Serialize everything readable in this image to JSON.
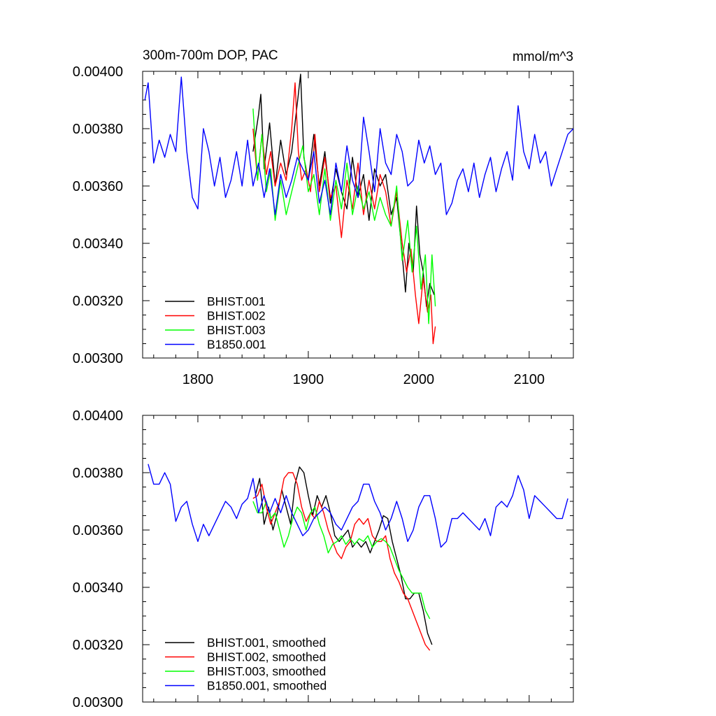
{
  "figure": {
    "title_left": "300m-700m DOP, PAC",
    "title_right": "mmol/m^3"
  },
  "chart_data": [
    {
      "type": "line",
      "title": "300m-700m DOP, PAC",
      "units": "mmol/m^3",
      "xlabel": "",
      "ylabel": "",
      "xlim": [
        1750,
        2140
      ],
      "ylim": [
        0.003,
        0.004
      ],
      "xticks": [
        1800,
        1900,
        2000,
        2100
      ],
      "xtick_labels": [
        "1800",
        "1900",
        "2000",
        "2100"
      ],
      "yticks": [
        0.003,
        0.0032,
        0.0034,
        0.0036,
        0.0038,
        0.004
      ],
      "ytick_labels": [
        "0.00300",
        "0.00320",
        "0.00340",
        "0.00360",
        "0.00380",
        "0.00400"
      ],
      "legend_position": "bottom-left",
      "series": [
        {
          "name": "BHIST.001",
          "color": "#000000",
          "x": [
            1850,
            1855,
            1857,
            1860,
            1865,
            1870,
            1875,
            1880,
            1885,
            1888,
            1891,
            1893,
            1896,
            1900,
            1905,
            1910,
            1915,
            1920,
            1925,
            1930,
            1935,
            1940,
            1945,
            1950,
            1955,
            1960,
            1965,
            1970,
            1975,
            1980,
            1985,
            1988,
            1991,
            1995,
            1998,
            2001,
            2004,
            2007,
            2010,
            2014
          ],
          "y": [
            0.00372,
            0.00385,
            0.00392,
            0.00366,
            0.00382,
            0.0036,
            0.00376,
            0.00364,
            0.00372,
            0.00382,
            0.00392,
            0.00399,
            0.0037,
            0.00362,
            0.00378,
            0.0036,
            0.00372,
            0.00354,
            0.00366,
            0.00358,
            0.00352,
            0.0037,
            0.00356,
            0.00364,
            0.00348,
            0.00366,
            0.0036,
            0.00364,
            0.0035,
            0.00356,
            0.00336,
            0.00323,
            0.0034,
            0.0033,
            0.00353,
            0.00336,
            0.0033,
            0.00318,
            0.00326,
            0.00322
          ]
        },
        {
          "name": "BHIST.002",
          "color": "#ff0000",
          "x": [
            1850,
            1854,
            1858,
            1862,
            1866,
            1870,
            1875,
            1880,
            1885,
            1888,
            1891,
            1894,
            1898,
            1902,
            1906,
            1910,
            1915,
            1920,
            1925,
            1930,
            1935,
            1940,
            1945,
            1950,
            1955,
            1960,
            1965,
            1970,
            1975,
            1980,
            1985,
            1989,
            1993,
            1997,
            2000,
            2004,
            2008,
            2011,
            2013,
            2015
          ],
          "y": [
            0.0038,
            0.00362,
            0.00378,
            0.00364,
            0.00372,
            0.0036,
            0.00368,
            0.00362,
            0.0038,
            0.00396,
            0.00372,
            0.00362,
            0.00366,
            0.00358,
            0.00378,
            0.00358,
            0.0037,
            0.00356,
            0.0036,
            0.00342,
            0.00362,
            0.00352,
            0.00368,
            0.0035,
            0.00362,
            0.00352,
            0.00364,
            0.00358,
            0.00346,
            0.00358,
            0.0034,
            0.0033,
            0.00338,
            0.00322,
            0.00312,
            0.00328,
            0.00316,
            0.00322,
            0.00305,
            0.00311
          ]
        },
        {
          "name": "BHIST.003",
          "color": "#00ff00",
          "x": [
            1850,
            1854,
            1858,
            1862,
            1866,
            1870,
            1875,
            1880,
            1885,
            1890,
            1895,
            1900,
            1905,
            1910,
            1915,
            1920,
            1925,
            1930,
            1935,
            1940,
            1945,
            1950,
            1955,
            1960,
            1965,
            1970,
            1975,
            1980,
            1985,
            1990,
            1994,
            1998,
            2002,
            2006,
            2009,
            2012,
            2015
          ],
          "y": [
            0.00387,
            0.00362,
            0.00378,
            0.00358,
            0.00366,
            0.00348,
            0.00362,
            0.0035,
            0.00358,
            0.00366,
            0.00374,
            0.00358,
            0.00364,
            0.0035,
            0.00366,
            0.00348,
            0.00362,
            0.00352,
            0.00368,
            0.0035,
            0.0036,
            0.00352,
            0.00358,
            0.00348,
            0.00356,
            0.0035,
            0.00346,
            0.0036,
            0.00334,
            0.00348,
            0.0033,
            0.00346,
            0.00324,
            0.00336,
            0.00312,
            0.00336,
            0.00318
          ]
        },
        {
          "name": "B1850.001",
          "color": "#0000ff",
          "x": [
            1752,
            1755,
            1760,
            1765,
            1770,
            1775,
            1780,
            1785,
            1790,
            1795,
            1800,
            1805,
            1810,
            1815,
            1820,
            1825,
            1830,
            1835,
            1840,
            1845,
            1850,
            1855,
            1860,
            1865,
            1870,
            1875,
            1880,
            1885,
            1890,
            1895,
            1900,
            1905,
            1910,
            1915,
            1920,
            1925,
            1930,
            1935,
            1940,
            1945,
            1950,
            1955,
            1960,
            1965,
            1970,
            1975,
            1980,
            1985,
            1990,
            1995,
            2000,
            2005,
            2010,
            2015,
            2020,
            2025,
            2030,
            2035,
            2040,
            2045,
            2050,
            2055,
            2060,
            2065,
            2070,
            2075,
            2080,
            2085,
            2090,
            2095,
            2100,
            2105,
            2110,
            2115,
            2120,
            2125,
            2130,
            2135,
            2140
          ],
          "y": [
            0.0039,
            0.00396,
            0.00368,
            0.00376,
            0.0037,
            0.00378,
            0.00372,
            0.00398,
            0.00372,
            0.00356,
            0.00352,
            0.0038,
            0.00372,
            0.0036,
            0.0037,
            0.00356,
            0.00362,
            0.00372,
            0.0036,
            0.00376,
            0.0036,
            0.00368,
            0.00356,
            0.00366,
            0.0035,
            0.00364,
            0.00356,
            0.00362,
            0.0037,
            0.00366,
            0.00362,
            0.00372,
            0.00354,
            0.00362,
            0.0035,
            0.00368,
            0.00358,
            0.00374,
            0.00362,
            0.00356,
            0.00384,
            0.00372,
            0.00358,
            0.0038,
            0.00368,
            0.00364,
            0.00378,
            0.00372,
            0.0036,
            0.00362,
            0.00376,
            0.00368,
            0.00374,
            0.00364,
            0.00368,
            0.0035,
            0.00354,
            0.00362,
            0.00366,
            0.00358,
            0.00368,
            0.00356,
            0.00364,
            0.0037,
            0.00358,
            0.00366,
            0.00372,
            0.00362,
            0.00388,
            0.00372,
            0.00366,
            0.00378,
            0.00368,
            0.00372,
            0.0036,
            0.00366,
            0.00372,
            0.00378,
            0.0038
          ]
        }
      ]
    },
    {
      "type": "line",
      "title": "",
      "xlabel": "",
      "ylabel": "",
      "xlim": [
        1750,
        2140
      ],
      "ylim": [
        0.003,
        0.004
      ],
      "xticks": [
        1800,
        1900,
        2000,
        2100
      ],
      "xtick_labels": [],
      "yticks": [
        0.003,
        0.0032,
        0.0034,
        0.0036,
        0.0038,
        0.004
      ],
      "ytick_labels": [
        "0.00300",
        "0.00320",
        "0.00340",
        "0.00360",
        "0.00380",
        "0.00400"
      ],
      "legend_position": "bottom-left",
      "series": [
        {
          "name": "BHIST.001, smoothed",
          "color": "#000000",
          "x": [
            1852,
            1856,
            1860,
            1864,
            1868,
            1872,
            1876,
            1880,
            1884,
            1888,
            1892,
            1896,
            1900,
            1904,
            1908,
            1912,
            1916,
            1920,
            1924,
            1928,
            1932,
            1936,
            1940,
            1944,
            1948,
            1952,
            1956,
            1960,
            1964,
            1968,
            1972,
            1976,
            1980,
            1984,
            1988,
            1992,
            1996,
            2000,
            2004,
            2008,
            2012
          ],
          "y": [
            0.00372,
            0.00378,
            0.00362,
            0.00368,
            0.0036,
            0.00366,
            0.00374,
            0.00368,
            0.00362,
            0.00376,
            0.00382,
            0.0038,
            0.00372,
            0.00365,
            0.00372,
            0.00368,
            0.00372,
            0.00366,
            0.00358,
            0.00356,
            0.00358,
            0.0036,
            0.00354,
            0.00356,
            0.00354,
            0.00356,
            0.00352,
            0.00356,
            0.0036,
            0.00365,
            0.00364,
            0.00356,
            0.0035,
            0.00344,
            0.00336,
            0.00336,
            0.00338,
            0.00338,
            0.00332,
            0.00324,
            0.0032
          ]
        },
        {
          "name": "BHIST.002, smoothed",
          "color": "#ff0000",
          "x": [
            1850,
            1854,
            1858,
            1862,
            1866,
            1870,
            1874,
            1878,
            1882,
            1886,
            1890,
            1894,
            1898,
            1902,
            1906,
            1910,
            1914,
            1918,
            1922,
            1926,
            1930,
            1934,
            1938,
            1942,
            1946,
            1950,
            1954,
            1958,
            1962,
            1966,
            1970,
            1974,
            1978,
            1982,
            1986,
            1990,
            1994,
            1998,
            2002,
            2006,
            2010
          ],
          "y": [
            0.00371,
            0.00372,
            0.00376,
            0.00368,
            0.00362,
            0.00366,
            0.0037,
            0.00378,
            0.0038,
            0.0038,
            0.00376,
            0.00368,
            0.00363,
            0.00366,
            0.00364,
            0.0037,
            0.00366,
            0.0036,
            0.00356,
            0.00352,
            0.0035,
            0.00354,
            0.00356,
            0.00362,
            0.00364,
            0.00362,
            0.00364,
            0.00358,
            0.00356,
            0.00356,
            0.00358,
            0.0035,
            0.00345,
            0.00342,
            0.00338,
            0.00336,
            0.00332,
            0.00328,
            0.00324,
            0.0032,
            0.00318
          ]
        },
        {
          "name": "BHIST.003, smoothed",
          "color": "#00ff00",
          "x": [
            1850,
            1854,
            1858,
            1862,
            1866,
            1870,
            1874,
            1878,
            1882,
            1886,
            1890,
            1894,
            1898,
            1902,
            1906,
            1910,
            1914,
            1918,
            1922,
            1926,
            1930,
            1934,
            1938,
            1942,
            1946,
            1950,
            1954,
            1958,
            1962,
            1966,
            1970,
            1974,
            1978,
            1982,
            1986,
            1990,
            1994,
            1998,
            2002,
            2006,
            2010
          ],
          "y": [
            0.0037,
            0.00366,
            0.00366,
            0.0037,
            0.00364,
            0.00366,
            0.0036,
            0.00354,
            0.00358,
            0.00364,
            0.00368,
            0.00366,
            0.0036,
            0.00366,
            0.00368,
            0.00362,
            0.00358,
            0.00352,
            0.00355,
            0.00356,
            0.00358,
            0.00355,
            0.00357,
            0.00355,
            0.00357,
            0.00356,
            0.00358,
            0.00354,
            0.00356,
            0.00357,
            0.00356,
            0.00354,
            0.0035,
            0.00346,
            0.00343,
            0.0034,
            0.00338,
            0.00338,
            0.00338,
            0.00332,
            0.00329
          ]
        },
        {
          "name": "B1850.001, smoothed",
          "color": "#0000ff",
          "x": [
            1755,
            1760,
            1765,
            1770,
            1775,
            1780,
            1785,
            1790,
            1795,
            1800,
            1805,
            1810,
            1815,
            1820,
            1825,
            1830,
            1835,
            1840,
            1845,
            1850,
            1855,
            1860,
            1865,
            1870,
            1875,
            1880,
            1885,
            1890,
            1895,
            1900,
            1905,
            1910,
            1915,
            1920,
            1925,
            1930,
            1935,
            1940,
            1945,
            1950,
            1955,
            1960,
            1965,
            1970,
            1975,
            1980,
            1985,
            1990,
            1995,
            2000,
            2005,
            2010,
            2015,
            2020,
            2025,
            2030,
            2035,
            2040,
            2045,
            2050,
            2055,
            2060,
            2065,
            2070,
            2075,
            2080,
            2085,
            2090,
            2095,
            2100,
            2105,
            2110,
            2115,
            2120,
            2125,
            2130,
            2135
          ],
          "y": [
            0.00383,
            0.00376,
            0.00376,
            0.0038,
            0.00376,
            0.00363,
            0.00368,
            0.0037,
            0.00362,
            0.00356,
            0.00362,
            0.00358,
            0.00362,
            0.00366,
            0.0037,
            0.00368,
            0.00364,
            0.00369,
            0.00371,
            0.00378,
            0.00366,
            0.00372,
            0.00366,
            0.00371,
            0.00366,
            0.00372,
            0.00366,
            0.00362,
            0.00358,
            0.0036,
            0.00364,
            0.00366,
            0.00368,
            0.00366,
            0.00362,
            0.0036,
            0.00364,
            0.00368,
            0.0037,
            0.00376,
            0.00376,
            0.0037,
            0.00366,
            0.0036,
            0.00364,
            0.0037,
            0.00364,
            0.00356,
            0.0036,
            0.00368,
            0.00372,
            0.00372,
            0.00364,
            0.00354,
            0.00356,
            0.00364,
            0.00364,
            0.00366,
            0.00364,
            0.00362,
            0.0036,
            0.00364,
            0.00358,
            0.00368,
            0.0037,
            0.00368,
            0.00372,
            0.00379,
            0.00374,
            0.00364,
            0.00372,
            0.0037,
            0.00368,
            0.00366,
            0.00364,
            0.00364,
            0.00371
          ]
        }
      ]
    }
  ]
}
